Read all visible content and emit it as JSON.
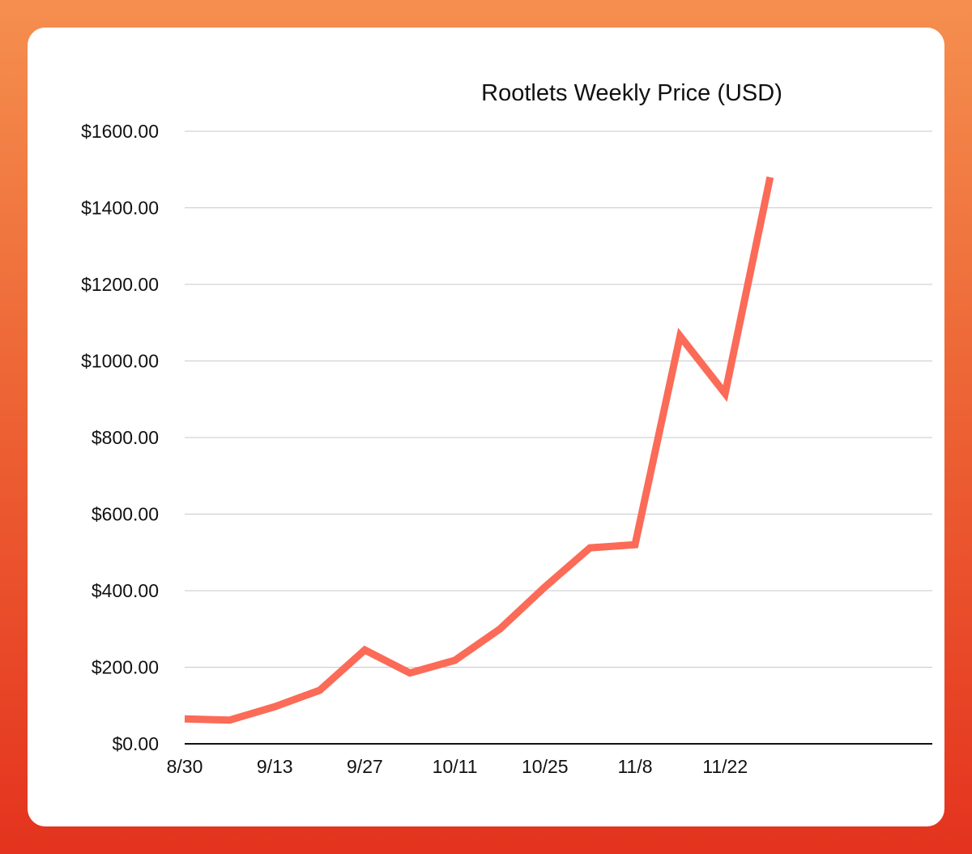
{
  "chart_data": {
    "type": "line",
    "title": "Rootlets Weekly Price (USD)",
    "xlabel": "",
    "ylabel": "",
    "x_tick_labels": [
      "8/30",
      "9/13",
      "9/27",
      "10/11",
      "10/25",
      "11/8",
      "11/22"
    ],
    "y_tick_labels": [
      "$0.00",
      "$200.00",
      "$400.00",
      "$600.00",
      "$800.00",
      "$1000.00",
      "$1200.00",
      "$1400.00",
      "$1600.00"
    ],
    "ylim": [
      0,
      1600
    ],
    "grid": true,
    "legend": "none",
    "line_color": "#fb6b57",
    "series": [
      {
        "x": [
          "8/30",
          "9/6",
          "9/13",
          "9/20",
          "9/27",
          "10/4",
          "10/11",
          "10/18",
          "10/25",
          "11/1",
          "11/8",
          "11/15",
          "11/22",
          "11/29"
        ],
        "values": [
          65,
          62,
          97,
          140,
          245,
          185,
          218,
          300,
          410,
          512,
          520,
          1065,
          915,
          1480
        ]
      }
    ]
  }
}
